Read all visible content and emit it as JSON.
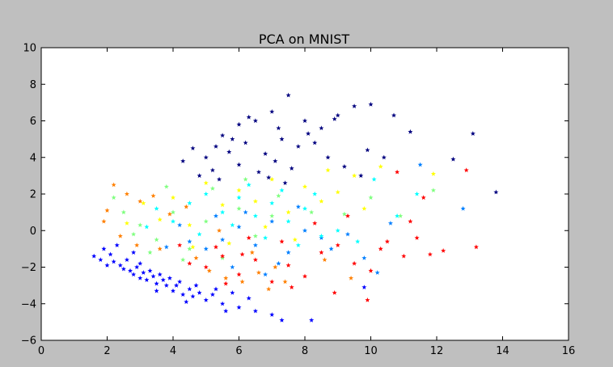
{
  "figure": {
    "background": "#bfbfbf",
    "axes_background": "#ffffff"
  },
  "chart_data": {
    "type": "scatter",
    "title": "PCA on MNIST",
    "xlabel": "",
    "ylabel": "",
    "xlim": [
      0,
      16
    ],
    "ylim": [
      -6,
      10
    ],
    "xticks": [
      0,
      2,
      4,
      6,
      8,
      10,
      12,
      14,
      16
    ],
    "yticks": [
      -6,
      -4,
      -2,
      0,
      2,
      4,
      6,
      8,
      10
    ],
    "xtick_labels": [
      "0",
      "2",
      "4",
      "6",
      "8",
      "10",
      "12",
      "14",
      "16"
    ],
    "ytick_labels": [
      "−6",
      "−4",
      "−2",
      "0",
      "2",
      "4",
      "6",
      "8",
      "10"
    ],
    "grid": false,
    "marker": "star",
    "colormap": "jet",
    "series": [
      {
        "color": "#00007f",
        "points": [
          [
            5.0,
            4.0
          ],
          [
            5.5,
            5.2
          ],
          [
            6.0,
            5.8
          ],
          [
            6.5,
            6.0
          ],
          [
            7.0,
            6.5
          ],
          [
            7.5,
            7.4
          ],
          [
            8.0,
            6.0
          ],
          [
            8.5,
            5.6
          ],
          [
            9.0,
            6.3
          ],
          [
            9.5,
            6.8
          ],
          [
            10.0,
            6.9
          ],
          [
            10.7,
            6.3
          ],
          [
            11.2,
            5.4
          ],
          [
            12.5,
            3.9
          ],
          [
            13.1,
            5.3
          ],
          [
            13.8,
            2.1
          ],
          [
            4.3,
            3.8
          ],
          [
            4.6,
            4.5
          ],
          [
            5.3,
            4.6
          ],
          [
            5.8,
            5.0
          ],
          [
            6.2,
            4.8
          ],
          [
            6.8,
            4.2
          ],
          [
            7.3,
            5.0
          ],
          [
            7.8,
            4.6
          ],
          [
            8.3,
            4.8
          ],
          [
            8.7,
            4.0
          ],
          [
            9.2,
            3.5
          ],
          [
            9.7,
            3.0
          ],
          [
            6.0,
            3.6
          ],
          [
            6.6,
            3.2
          ],
          [
            7.1,
            3.8
          ],
          [
            7.6,
            3.4
          ],
          [
            5.2,
            3.3
          ],
          [
            4.8,
            3.0
          ],
          [
            5.7,
            4.3
          ],
          [
            8.1,
            5.3
          ],
          [
            9.9,
            4.4
          ],
          [
            10.4,
            4.0
          ],
          [
            6.3,
            6.2
          ],
          [
            7.2,
            5.6
          ],
          [
            8.9,
            6.1
          ],
          [
            5.4,
            2.8
          ],
          [
            6.9,
            2.9
          ],
          [
            7.4,
            2.6
          ]
        ]
      },
      {
        "color": "#0000ff",
        "points": [
          [
            1.6,
            -1.4
          ],
          [
            1.8,
            -1.6
          ],
          [
            2.0,
            -1.9
          ],
          [
            2.2,
            -1.7
          ],
          [
            2.5,
            -2.1
          ],
          [
            2.8,
            -2.4
          ],
          [
            3.0,
            -2.6
          ],
          [
            3.2,
            -2.7
          ],
          [
            3.5,
            -2.9
          ],
          [
            3.8,
            -3.0
          ],
          [
            4.0,
            -3.3
          ],
          [
            4.3,
            -3.5
          ],
          [
            4.6,
            -3.6
          ],
          [
            5.0,
            -3.8
          ],
          [
            5.5,
            -4.0
          ],
          [
            6.0,
            -4.2
          ],
          [
            6.5,
            -4.4
          ],
          [
            7.0,
            -4.6
          ],
          [
            7.3,
            -4.9
          ],
          [
            2.4,
            -1.9
          ],
          [
            2.7,
            -2.2
          ],
          [
            3.1,
            -2.3
          ],
          [
            3.4,
            -2.5
          ],
          [
            3.7,
            -2.7
          ],
          [
            4.1,
            -3.0
          ],
          [
            4.5,
            -3.2
          ],
          [
            4.8,
            -3.4
          ],
          [
            5.2,
            -3.5
          ],
          [
            2.9,
            -2.0
          ],
          [
            3.3,
            -2.2
          ],
          [
            3.6,
            -2.4
          ],
          [
            3.9,
            -2.6
          ],
          [
            4.2,
            -2.8
          ],
          [
            4.7,
            -3.0
          ],
          [
            5.3,
            -3.2
          ],
          [
            5.8,
            -3.4
          ],
          [
            2.1,
            -1.3
          ],
          [
            2.6,
            -1.6
          ],
          [
            3.0,
            -1.8
          ],
          [
            1.9,
            -1.0
          ],
          [
            2.3,
            -0.8
          ],
          [
            2.8,
            -1.2
          ],
          [
            8.2,
            -4.9
          ],
          [
            9.8,
            -3.1
          ],
          [
            6.3,
            -3.7
          ],
          [
            3.5,
            -3.3
          ],
          [
            4.4,
            -3.9
          ],
          [
            5.6,
            -4.4
          ]
        ]
      },
      {
        "color": "#007fff",
        "points": [
          [
            5.0,
            -1.0
          ],
          [
            5.5,
            -0.5
          ],
          [
            6.0,
            0.2
          ],
          [
            6.5,
            -0.8
          ],
          [
            7.0,
            0.5
          ],
          [
            7.5,
            -1.2
          ],
          [
            8.0,
            0.0
          ],
          [
            8.5,
            -0.4
          ],
          [
            4.5,
            -0.6
          ],
          [
            6.2,
            1.0
          ],
          [
            7.2,
            -1.8
          ],
          [
            7.8,
            1.3
          ],
          [
            8.8,
            -1.0
          ],
          [
            9.3,
            -0.2
          ],
          [
            9.8,
            -1.5
          ],
          [
            10.2,
            -2.3
          ],
          [
            10.6,
            0.4
          ],
          [
            11.5,
            3.6
          ],
          [
            12.8,
            1.2
          ],
          [
            5.8,
            -2.0
          ],
          [
            6.8,
            -2.4
          ],
          [
            4.2,
            0.3
          ],
          [
            3.8,
            -0.9
          ],
          [
            5.3,
            0.8
          ]
        ]
      },
      {
        "color": "#00ffff",
        "points": [
          [
            4.5,
            1.5
          ],
          [
            5.0,
            2.0
          ],
          [
            5.5,
            1.0
          ],
          [
            6.0,
            1.8
          ],
          [
            6.5,
            0.8
          ],
          [
            7.0,
            1.5
          ],
          [
            7.5,
            0.5
          ],
          [
            8.0,
            1.2
          ],
          [
            8.5,
            -0.3
          ],
          [
            4.0,
            0.5
          ],
          [
            4.8,
            -0.2
          ],
          [
            5.8,
            0.3
          ],
          [
            6.8,
            -0.4
          ],
          [
            7.8,
            -0.8
          ],
          [
            9.0,
            0.0
          ],
          [
            9.6,
            -0.6
          ],
          [
            10.1,
            2.8
          ],
          [
            10.8,
            0.8
          ],
          [
            11.4,
            2.0
          ],
          [
            3.5,
            1.2
          ],
          [
            3.2,
            0.2
          ],
          [
            6.3,
            2.5
          ],
          [
            7.3,
            2.2
          ],
          [
            8.3,
            2.0
          ]
        ]
      },
      {
        "color": "#7fff7f",
        "points": [
          [
            3.0,
            0.3
          ],
          [
            3.5,
            -0.5
          ],
          [
            4.0,
            1.0
          ],
          [
            4.5,
            -1.0
          ],
          [
            5.0,
            0.5
          ],
          [
            5.5,
            -1.5
          ],
          [
            6.0,
            1.2
          ],
          [
            6.5,
            -0.3
          ],
          [
            7.0,
            0.8
          ],
          [
            2.5,
            1.0
          ],
          [
            2.8,
            -0.2
          ],
          [
            3.3,
            -1.2
          ],
          [
            4.3,
            -1.6
          ],
          [
            5.2,
            2.3
          ],
          [
            6.2,
            2.8
          ],
          [
            7.2,
            1.9
          ],
          [
            8.2,
            1.0
          ],
          [
            9.2,
            0.9
          ],
          [
            10.0,
            1.8
          ],
          [
            11.9,
            2.2
          ],
          [
            10.9,
            0.8
          ],
          [
            2.2,
            1.8
          ],
          [
            3.8,
            2.4
          ]
        ]
      },
      {
        "color": "#ffff00",
        "points": [
          [
            4.0,
            1.8
          ],
          [
            4.5,
            0.3
          ],
          [
            5.0,
            2.6
          ],
          [
            5.5,
            1.4
          ],
          [
            6.0,
            2.2
          ],
          [
            6.5,
            1.6
          ],
          [
            7.0,
            2.8
          ],
          [
            7.5,
            1.0
          ],
          [
            8.0,
            2.4
          ],
          [
            8.5,
            1.6
          ],
          [
            3.6,
            0.6
          ],
          [
            3.1,
            1.5
          ],
          [
            2.6,
            0.4
          ],
          [
            9.0,
            2.1
          ],
          [
            9.5,
            3.0
          ],
          [
            10.3,
            3.5
          ],
          [
            11.9,
            3.1
          ],
          [
            6.8,
            0.2
          ],
          [
            5.7,
            -0.7
          ],
          [
            4.6,
            -0.9
          ],
          [
            7.7,
            -0.5
          ],
          [
            8.7,
            3.3
          ],
          [
            9.8,
            1.2
          ]
        ]
      },
      {
        "color": "#ff7f00",
        "points": [
          [
            2.2,
            2.5
          ],
          [
            2.6,
            2.0
          ],
          [
            3.0,
            1.6
          ],
          [
            3.4,
            1.9
          ],
          [
            3.9,
            0.9
          ],
          [
            4.4,
            1.3
          ],
          [
            5.1,
            -2.2
          ],
          [
            5.6,
            -2.6
          ],
          [
            6.1,
            -2.8
          ],
          [
            6.6,
            -2.3
          ],
          [
            7.1,
            -2.0
          ],
          [
            4.7,
            -1.5
          ],
          [
            5.4,
            0.0
          ],
          [
            6.4,
            -1.2
          ],
          [
            7.4,
            -2.8
          ],
          [
            2.0,
            1.1
          ],
          [
            1.9,
            0.5
          ],
          [
            2.4,
            -0.3
          ],
          [
            2.9,
            -0.8
          ],
          [
            3.6,
            -1.0
          ],
          [
            8.6,
            -1.6
          ],
          [
            9.4,
            -2.6
          ],
          [
            6.9,
            -3.2
          ]
        ]
      },
      {
        "color": "#ff0000",
        "points": [
          [
            4.5,
            -1.8
          ],
          [
            5.0,
            -2.0
          ],
          [
            5.5,
            -1.4
          ],
          [
            6.0,
            -2.4
          ],
          [
            6.5,
            -1.6
          ],
          [
            7.0,
            -2.8
          ],
          [
            7.5,
            -1.9
          ],
          [
            8.0,
            -2.5
          ],
          [
            8.5,
            -1.2
          ],
          [
            9.0,
            -0.8
          ],
          [
            9.5,
            -1.8
          ],
          [
            10.0,
            -2.2
          ],
          [
            10.5,
            -0.6
          ],
          [
            11.0,
            -1.4
          ],
          [
            11.4,
            -0.4
          ],
          [
            11.8,
            -1.3
          ],
          [
            12.2,
            -1.1
          ],
          [
            12.9,
            3.3
          ],
          [
            13.2,
            -0.9
          ],
          [
            11.6,
            1.8
          ],
          [
            10.8,
            3.2
          ],
          [
            4.2,
            -0.8
          ],
          [
            5.3,
            -0.9
          ],
          [
            6.3,
            -0.4
          ],
          [
            7.3,
            -0.6
          ],
          [
            8.3,
            0.4
          ],
          [
            9.3,
            0.8
          ],
          [
            9.9,
            -3.8
          ],
          [
            8.9,
            -3.4
          ],
          [
            7.6,
            -3.1
          ],
          [
            6.1,
            -1.3
          ],
          [
            5.6,
            -2.9
          ],
          [
            10.3,
            -1.0
          ],
          [
            11.2,
            0.5
          ]
        ]
      }
    ]
  }
}
